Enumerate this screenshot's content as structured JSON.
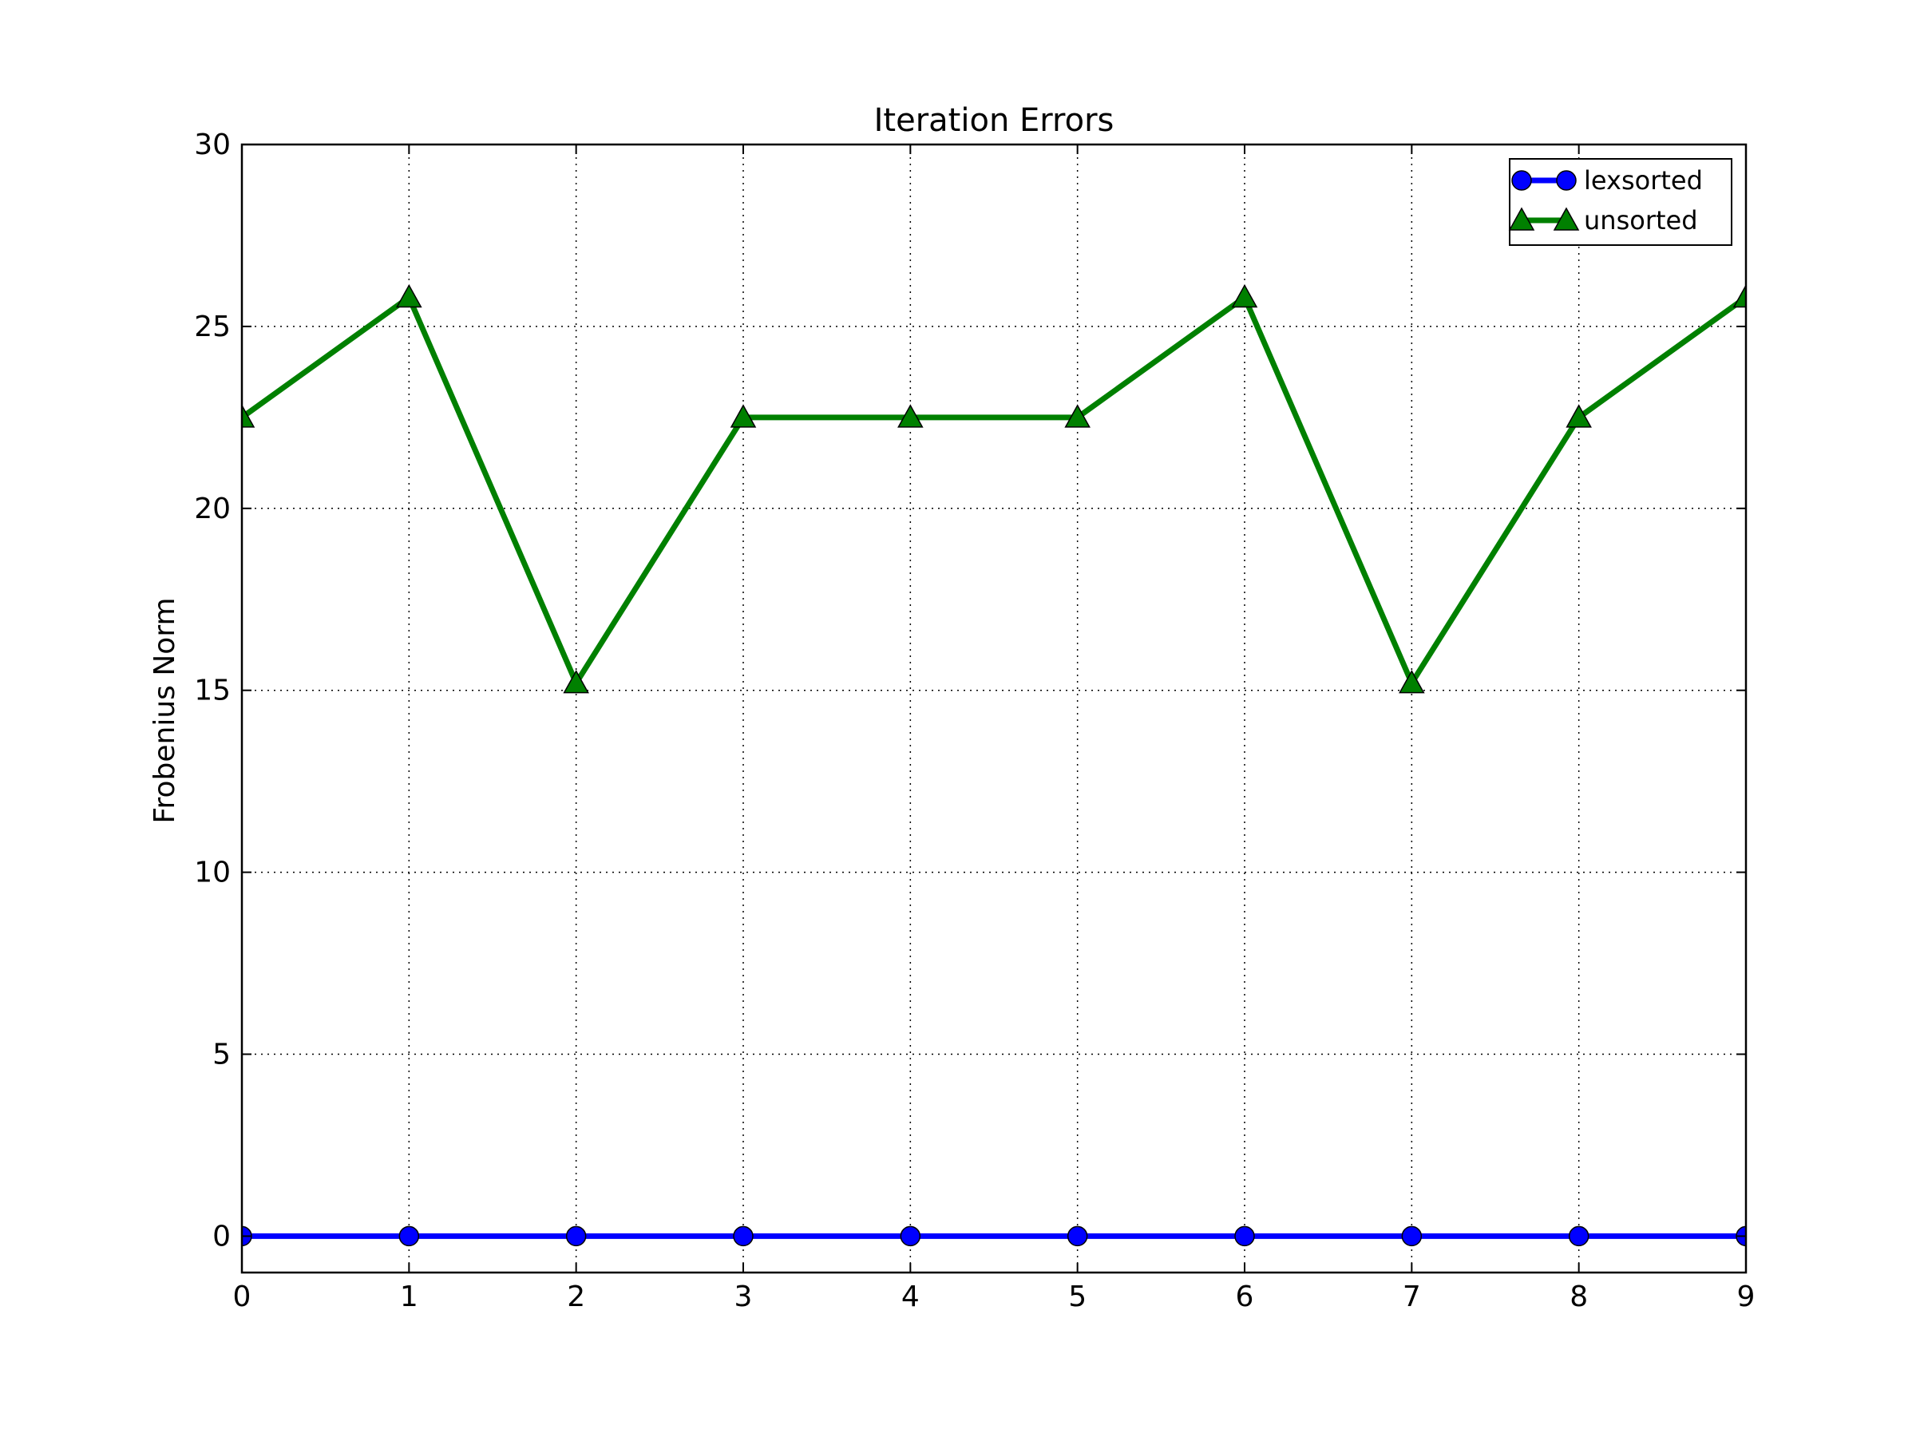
{
  "colors": {
    "background": "#ffffff",
    "axes": "#000000",
    "grid": "#000000",
    "lexsorted": "#0000ff",
    "unsorted": "#008000"
  },
  "chart_data": {
    "type": "line",
    "title": "Iteration Errors",
    "xlabel": "",
    "ylabel": "Frobenius Norm",
    "xlim": [
      0,
      9
    ],
    "ylim": [
      -1,
      30
    ],
    "x_ticks": [
      0,
      1,
      2,
      3,
      4,
      5,
      6,
      7,
      8,
      9
    ],
    "y_ticks": [
      0,
      5,
      10,
      15,
      20,
      25,
      30
    ],
    "grid": true,
    "legend_position": "top-right",
    "x": [
      0,
      1,
      2,
      3,
      4,
      5,
      6,
      7,
      8,
      9
    ],
    "series": [
      {
        "name": "lexsorted",
        "marker": "circle",
        "color": "#0000ff",
        "values": [
          0,
          0,
          0,
          0,
          0,
          0,
          0,
          0,
          0,
          0
        ]
      },
      {
        "name": "unsorted",
        "marker": "triangle",
        "color": "#008000",
        "values": [
          22.5,
          25.8,
          15.2,
          22.5,
          22.5,
          22.5,
          25.8,
          15.2,
          22.5,
          25.8
        ]
      }
    ]
  }
}
